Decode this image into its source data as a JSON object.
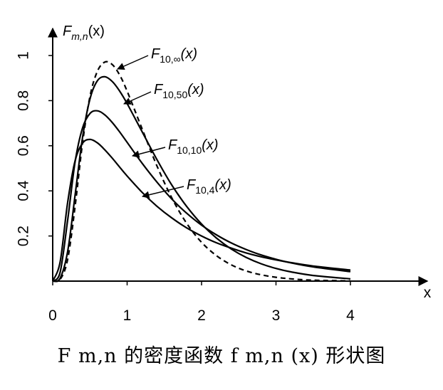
{
  "chart_data": {
    "type": "line",
    "title": "",
    "caption": "F m,n 的密度函数 f m,n (x) 形状图",
    "ylabel": "F m,n (x)",
    "xlabel": "x",
    "xlim": [
      0,
      4.9
    ],
    "ylim": [
      0,
      1.0
    ],
    "x_ticks": [
      "0",
      "1",
      "2",
      "3",
      "4"
    ],
    "y_ticks": [
      "0.2",
      "0.4",
      "0.6",
      "0.8",
      "1"
    ],
    "x_tick_values": [
      0,
      1,
      2,
      3,
      4
    ],
    "y_tick_values": [
      0.2,
      0.4,
      0.6,
      0.8,
      1
    ],
    "series": [
      {
        "name": "F10,∞(x)",
        "name_base": "F",
        "name_sub": "10,∞",
        "style": "dashed",
        "x": [
          0,
          0.1,
          0.2,
          0.3,
          0.4,
          0.5,
          0.6,
          0.7,
          0.8,
          0.9,
          1.0,
          1.2,
          1.4,
          1.6,
          1.8,
          2.0,
          2.2,
          2.4,
          2.6,
          2.8,
          3.0,
          3.2,
          3.5,
          4.0
        ],
        "y": [
          0,
          0.008,
          0.095,
          0.328,
          0.61,
          0.818,
          0.93,
          0.971,
          0.96,
          0.913,
          0.842,
          0.676,
          0.511,
          0.369,
          0.256,
          0.172,
          0.113,
          0.072,
          0.045,
          0.028,
          0.017,
          0.01,
          0.004,
          0.001
        ]
      },
      {
        "name": "F10,50(x)",
        "name_base": "F",
        "name_sub": "10,50",
        "style": "solid",
        "x": [
          0,
          0.1,
          0.2,
          0.3,
          0.4,
          0.5,
          0.6,
          0.7,
          0.8,
          0.9,
          1.0,
          1.2,
          1.4,
          1.6,
          1.8,
          2.0,
          2.2,
          2.4,
          2.6,
          2.8,
          3.0,
          3.2,
          3.5,
          4.0
        ],
        "y": [
          0,
          0.013,
          0.13,
          0.378,
          0.635,
          0.807,
          0.888,
          0.906,
          0.885,
          0.842,
          0.787,
          0.663,
          0.539,
          0.426,
          0.331,
          0.253,
          0.191,
          0.142,
          0.105,
          0.077,
          0.056,
          0.041,
          0.025,
          0.01
        ]
      },
      {
        "name": "F10,10(x)",
        "name_base": "F",
        "name_sub": "10,10",
        "style": "solid",
        "x": [
          0,
          0.1,
          0.2,
          0.3,
          0.4,
          0.5,
          0.6,
          0.7,
          0.8,
          0.9,
          1.0,
          1.2,
          1.4,
          1.6,
          1.8,
          2.0,
          2.2,
          2.4,
          2.6,
          2.8,
          3.0,
          3.2,
          3.5,
          4.0
        ],
        "y": [
          0,
          0.04,
          0.268,
          0.526,
          0.678,
          0.743,
          0.755,
          0.737,
          0.703,
          0.661,
          0.615,
          0.523,
          0.439,
          0.364,
          0.301,
          0.248,
          0.205,
          0.169,
          0.14,
          0.116,
          0.097,
          0.081,
          0.063,
          0.042
        ]
      },
      {
        "name": "F10,4(x)",
        "name_base": "F",
        "name_sub": "10,4",
        "style": "solid",
        "x": [
          0,
          0.1,
          0.2,
          0.3,
          0.4,
          0.5,
          0.6,
          0.7,
          0.8,
          0.9,
          1.0,
          1.2,
          1.4,
          1.6,
          1.8,
          2.0,
          2.2,
          2.4,
          2.6,
          2.8,
          3.0,
          3.2,
          3.5,
          4.0
        ],
        "y": [
          0,
          0.086,
          0.347,
          0.532,
          0.611,
          0.628,
          0.613,
          0.582,
          0.545,
          0.505,
          0.466,
          0.394,
          0.332,
          0.28,
          0.236,
          0.2,
          0.17,
          0.146,
          0.125,
          0.108,
          0.094,
          0.082,
          0.067,
          0.049
        ]
      }
    ],
    "grid": false,
    "legend": "curve labels with pointer arrows"
  }
}
